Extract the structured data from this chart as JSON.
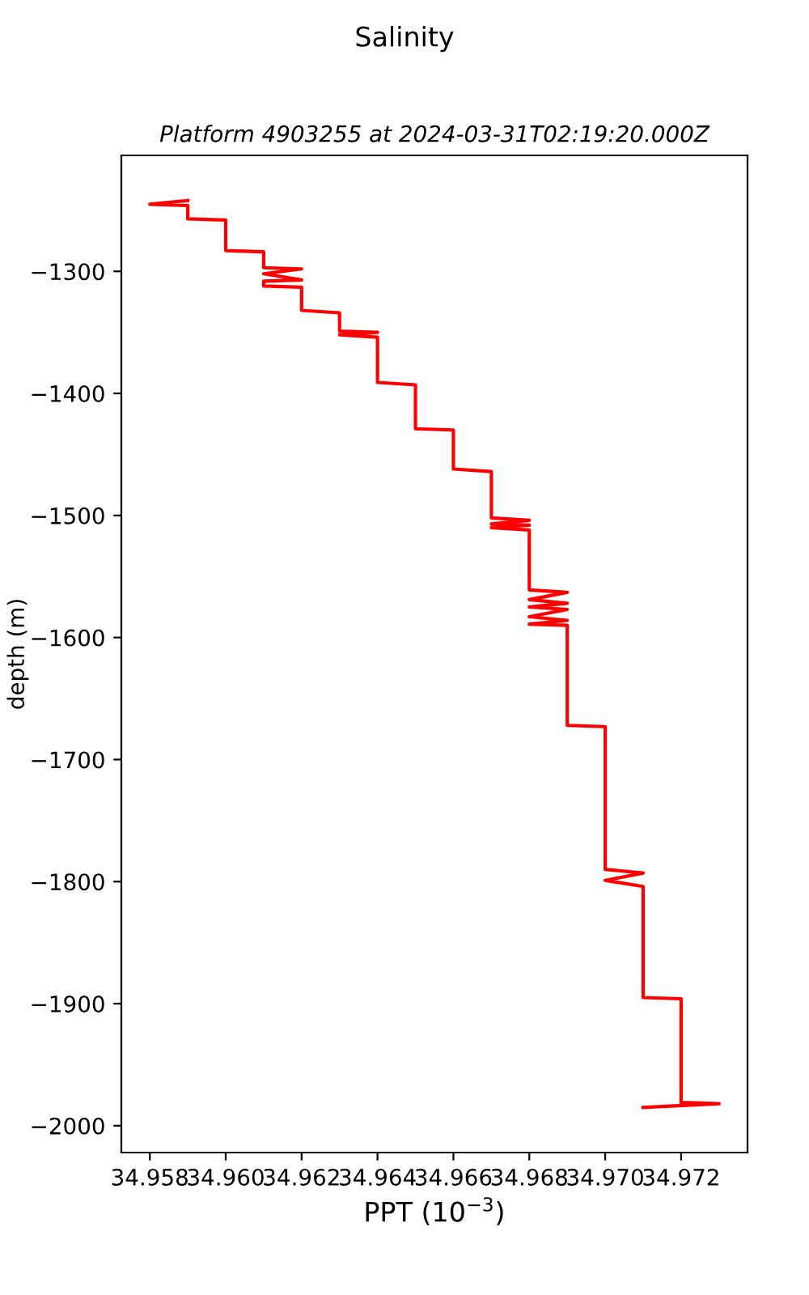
{
  "chart_data": {
    "type": "line",
    "title": "Salinity",
    "subtitle": "Platform 4903255 at 2024-03-31T02:19:20.000Z",
    "xlabel": "PPT (10$^{−3}$)",
    "ylabel": "depth (m)",
    "series": [
      {
        "color": "#ff0000",
        "x": [
          34.959,
          34.958,
          34.959,
          34.959,
          34.96,
          34.96,
          34.961,
          34.961,
          34.962,
          34.961,
          34.962,
          34.961,
          34.961,
          34.962,
          34.962,
          34.963,
          34.963,
          34.964,
          34.963,
          34.964,
          34.964,
          34.965,
          34.965,
          34.966,
          34.966,
          34.967,
          34.967,
          34.968,
          34.967,
          34.968,
          34.967,
          34.968,
          34.968,
          34.969,
          34.968,
          34.969,
          34.968,
          34.969,
          34.968,
          34.969,
          34.968,
          34.969,
          34.969,
          34.97,
          34.97,
          34.971,
          34.97,
          34.971,
          34.971,
          34.972,
          34.972,
          34.973,
          34.971
        ],
        "values": [
          -1242,
          -1245,
          -1246,
          -1257,
          -1258,
          -1283,
          -1284,
          -1297,
          -1298,
          -1302,
          -1307,
          -1308,
          -1312,
          -1313,
          -1332,
          -1334,
          -1349,
          -1350,
          -1352,
          -1354,
          -1391,
          -1393,
          -1429,
          -1430,
          -1462,
          -1464,
          -1502,
          -1504,
          -1507,
          -1508,
          -1510,
          -1512,
          -1561,
          -1563,
          -1569,
          -1572,
          -1575,
          -1577,
          -1583,
          -1586,
          -1589,
          -1590,
          -1672,
          -1673,
          -1790,
          -1793,
          -1799,
          -1804,
          -1895,
          -1896,
          -1981,
          -1982,
          -1985
        ]
      }
    ],
    "xlim": [
      34.95725,
      34.97375
    ],
    "xticks": [
      {
        "value": 34.958,
        "label": "34.958"
      },
      {
        "value": 34.96,
        "label": "34.960"
      },
      {
        "value": 34.962,
        "label": "34.962"
      },
      {
        "value": 34.964,
        "label": "34.964"
      },
      {
        "value": 34.966,
        "label": "34.966"
      },
      {
        "value": 34.968,
        "label": "34.968"
      },
      {
        "value": 34.97,
        "label": "34.970"
      },
      {
        "value": 34.972,
        "label": "34.972"
      }
    ],
    "ylim": [
      -2022,
      -1205
    ],
    "yticks": [
      {
        "value": -2000,
        "label": "−2000"
      },
      {
        "value": -1900,
        "label": "−1900"
      },
      {
        "value": -1800,
        "label": "−1800"
      },
      {
        "value": -1700,
        "label": "−1700"
      },
      {
        "value": -1600,
        "label": "−1600"
      },
      {
        "value": -1500,
        "label": "−1500"
      },
      {
        "value": -1400,
        "label": "−1400"
      },
      {
        "value": -1300,
        "label": "−1300"
      }
    ],
    "grid": false,
    "marker": "none",
    "line_style": "solid"
  }
}
